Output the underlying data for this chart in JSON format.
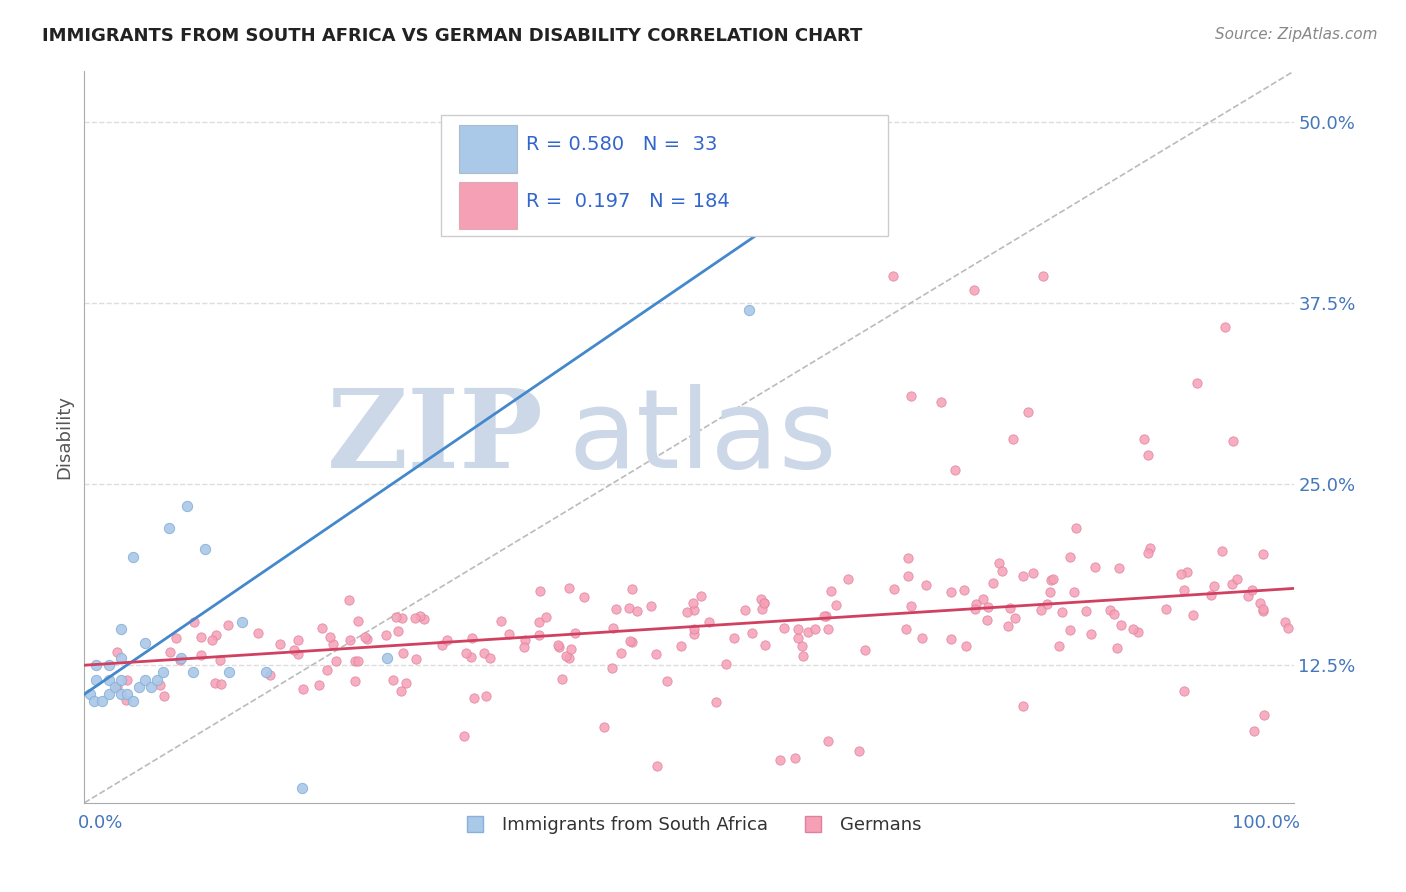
{
  "title": "IMMIGRANTS FROM SOUTH AFRICA VS GERMAN DISABILITY CORRELATION CHART",
  "source": "Source: ZipAtlas.com",
  "ylabel": "Disability",
  "y_tick_labels": [
    "12.5%",
    "25.0%",
    "37.5%",
    "50.0%"
  ],
  "y_tick_values": [
    0.125,
    0.25,
    0.375,
    0.5
  ],
  "x_lim": [
    0.0,
    1.0
  ],
  "y_lim": [
    0.03,
    0.535
  ],
  "blue_color": "#aac8e8",
  "blue_edge": "#88b0d8",
  "pink_color": "#f5a0b5",
  "pink_edge": "#e080a0",
  "blue_trend_color": "#4488cc",
  "pink_trend_color": "#d04060",
  "diag_color": "#bbbbbb",
  "watermark_color": "#ccd8e8",
  "background_color": "#ffffff",
  "grid_color": "#dddddd",
  "R_blue": 0.58,
  "N_blue": 33,
  "R_pink": 0.197,
  "N_pink": 184,
  "label_blue": "Immigrants from South Africa",
  "label_pink": "Germans"
}
